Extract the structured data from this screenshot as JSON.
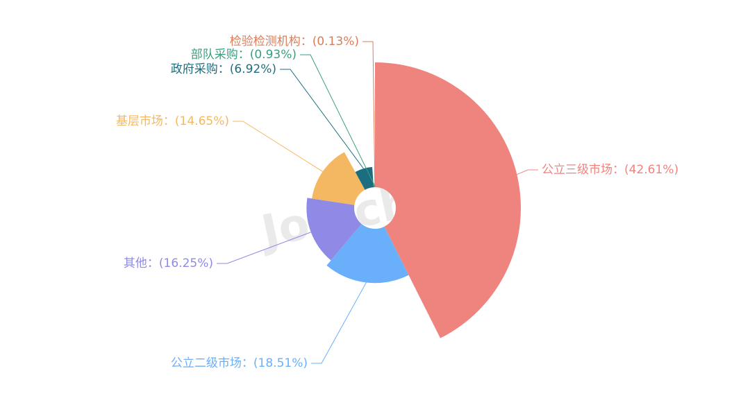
{
  "chart_data": {
    "type": "pie",
    "rose": "radius",
    "categories": [
      "公立三级市场：",
      "公立二级市场：",
      "其他：",
      "基层市场：",
      "政府采购：",
      "部队采购：",
      "检验检测机构："
    ],
    "values": [
      42.61,
      18.51,
      16.25,
      14.65,
      6.92,
      0.93,
      0.13
    ],
    "value_labels": [
      "(42.61%)",
      "(18.51%)",
      "(16.25%)",
      "(14.65%)",
      "(6.92%)",
      "(0.93%)",
      "(0.13%)"
    ],
    "colors": [
      "#ef847f",
      "#6aaffa",
      "#8e8ae6",
      "#f4b862",
      "#1b6e80",
      "#3a9e7e",
      "#d97d5b"
    ],
    "watermark": "Joinchain"
  }
}
